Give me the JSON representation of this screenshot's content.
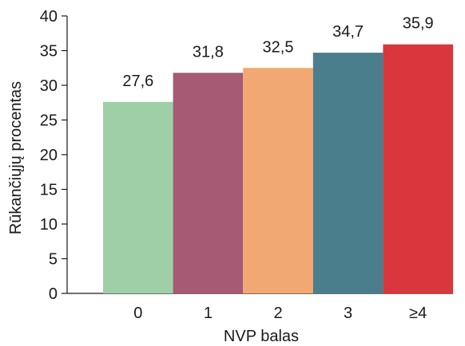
{
  "chart_data": {
    "type": "bar",
    "categories": [
      "0",
      "1",
      "2",
      "3",
      "≥4"
    ],
    "values": [
      27.6,
      31.8,
      32.5,
      34.7,
      35.9
    ],
    "data_labels": [
      "27,6",
      "31,8",
      "32,5",
      "34,7",
      "35,9"
    ],
    "colors": [
      "#9ecfa7",
      "#a65a73",
      "#f2a872",
      "#4a7e8c",
      "#d9363d"
    ],
    "xlabel": "NVP balas",
    "ylabel": "Rūkančiųjų procentas",
    "ylim": [
      0,
      40
    ],
    "yticks": [
      0,
      5,
      10,
      15,
      20,
      25,
      30,
      35,
      40
    ],
    "grid": false,
    "legend": false
  }
}
